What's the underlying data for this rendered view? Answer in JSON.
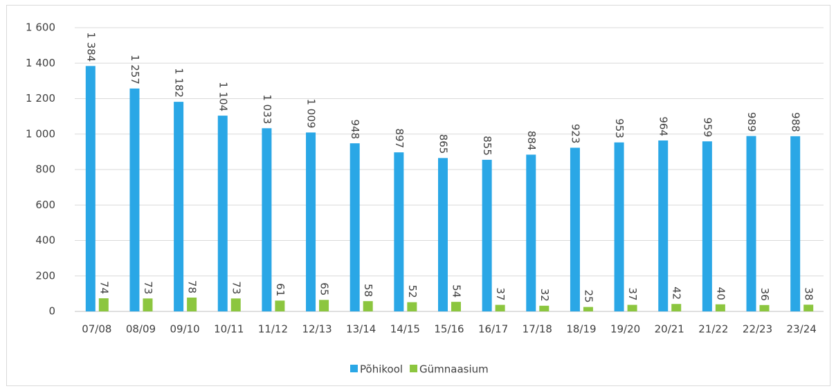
{
  "chart_data": {
    "type": "bar",
    "categories": [
      "07/08",
      "08/09",
      "09/10",
      "10/11",
      "11/12",
      "12/13",
      "13/14",
      "14/15",
      "15/16",
      "16/17",
      "17/18",
      "18/19",
      "19/20",
      "20/21",
      "21/22",
      "22/23",
      "23/24"
    ],
    "series": [
      {
        "name": "Põhikool",
        "color": "#2aa7e6",
        "values": [
          1384,
          1257,
          1182,
          1104,
          1033,
          1009,
          948,
          897,
          865,
          855,
          884,
          923,
          953,
          964,
          959,
          989,
          988
        ],
        "value_labels": [
          "1 384",
          "1 257",
          "1 182",
          "1 104",
          "1 033",
          "1 009",
          "948",
          "897",
          "865",
          "855",
          "884",
          "923",
          "953",
          "964",
          "959",
          "989",
          "988"
        ]
      },
      {
        "name": "Gümnaasium",
        "color": "#8cc63f",
        "values": [
          74,
          73,
          78,
          73,
          61,
          65,
          58,
          52,
          54,
          37,
          32,
          25,
          37,
          42,
          40,
          36,
          38
        ]
      }
    ],
    "ylim": [
      0,
      1600
    ],
    "yticks": [
      0,
      200,
      400,
      600,
      800,
      {
        "value": 1000,
        "label": "1 000"
      },
      {
        "value": 1200,
        "label": "1 200"
      },
      {
        "value": 1400,
        "label": "1 400"
      },
      {
        "value": 1600,
        "label": "1 600"
      }
    ],
    "grid": true,
    "legend": "bottom"
  }
}
